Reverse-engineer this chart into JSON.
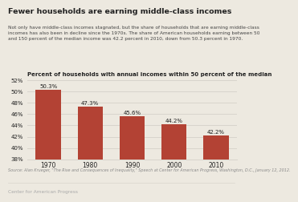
{
  "title": "Fewer households are earning middle-class incomes",
  "subtitle": "Not only have middle-class incomes stagnated, but the share of households that are earning middle-class\nincomes has also been in decline since the 1970s. The share of American households earning between 50\nand 150 percent of the median income was 42.2 percent in 2010, down from 50.3 percent in 1970.",
  "axis_label": "Percent of households with annual incomes within 50 percent of the median",
  "source": "Source: Alan Krueger, \"The Rise and Consequences of Inequality,\" Speech at Center for American Progress, Washington, D.C., January 12, 2012.",
  "branding": "Center for American Progress",
  "categories": [
    "1970",
    "1980",
    "1990",
    "2000",
    "2010"
  ],
  "values": [
    50.3,
    47.3,
    45.6,
    44.2,
    42.2
  ],
  "bar_color": "#b34234",
  "background_color": "#ede9e0",
  "grid_color": "#d8d4cc",
  "text_dark": "#222222",
  "text_mid": "#444444",
  "text_light": "#888888",
  "ylim_min": 38,
  "ylim_max": 52,
  "yticks": [
    38,
    40,
    42,
    44,
    46,
    48,
    50,
    52
  ],
  "ytick_labels": [
    "38%",
    "40%",
    "42%",
    "44%",
    "46%",
    "48%",
    "50%",
    "52%"
  ]
}
